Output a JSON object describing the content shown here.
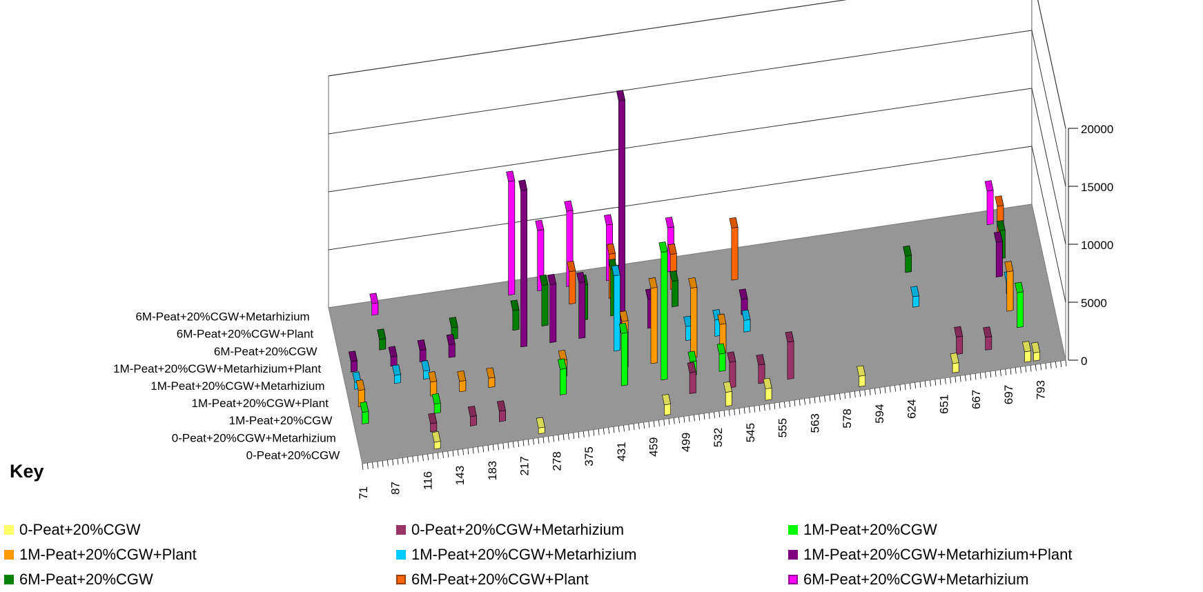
{
  "chart_data": {
    "type": "bar",
    "subtype": "3d-column",
    "title": "",
    "xlabel": "",
    "ylabel": "",
    "zlim": [
      0,
      20000
    ],
    "z_ticks": [
      "0",
      "5000",
      "10000",
      "15000",
      "20000"
    ],
    "x_tick_labels": [
      "71",
      "87",
      "116",
      "143",
      "183",
      "217",
      "278",
      "375",
      "431",
      "459",
      "499",
      "532",
      "545",
      "555",
      "563",
      "578",
      "594",
      "624",
      "651",
      "667",
      "697",
      "793"
    ],
    "series_axis_labels": [
      "0-Peat+20%CGW",
      "0-Peat+20%CGW+Metarhizium",
      "1M-Peat+20%CGW",
      "1M-Peat+20%CGW+Plant",
      "1M-Peat+20%CGW+Metarhizium",
      "1M-Peat+20%CGW+Metarhizium+Plant",
      "6M-Peat+20%CGW",
      "6M-Peat+20%CGW+Plant",
      "6M-Peat+20%CGW+Metarhizium"
    ],
    "legend_title": "Key",
    "legend_placement": "bottom",
    "series": [
      {
        "name": "0-Peat+20%CGW",
        "color": "#FFFF66",
        "x": [
          "116",
          "217",
          "459",
          "532",
          "545",
          "578",
          "651",
          "697",
          "793"
        ],
        "values": [
          600,
          500,
          900,
          1200,
          1000,
          900,
          800,
          900,
          700
        ]
      },
      {
        "name": "0-Peat+20%CGW+Metarhizium",
        "color": "#993366",
        "x": [
          "116",
          "143",
          "183",
          "499",
          "532",
          "545",
          "555",
          "651",
          "667"
        ],
        "values": [
          700,
          800,
          900,
          1800,
          2200,
          1600,
          3200,
          1500,
          1100
        ]
      },
      {
        "name": "1M-Peat+20%CGW",
        "color": "#00FF00",
        "x": [
          "71",
          "116",
          "278",
          "431",
          "459",
          "499",
          "532",
          "697"
        ],
        "values": [
          1000,
          800,
          2200,
          4500,
          11000,
          1200,
          1500,
          3000
        ]
      },
      {
        "name": "1M-Peat+20%CGW+Plant",
        "color": "#FF9900",
        "x": [
          "71",
          "116",
          "143",
          "183",
          "278",
          "431",
          "459",
          "499",
          "532",
          "697"
        ],
        "values": [
          1400,
          1200,
          900,
          800,
          1400,
          4000,
          6500,
          6000,
          2500,
          3400
        ]
      },
      {
        "name": "1M-Peat+20%CGW+Metarhizium",
        "color": "#00CCFF",
        "x": [
          "71",
          "87",
          "116",
          "431",
          "499",
          "532",
          "545",
          "624",
          "697"
        ],
        "values": [
          600,
          700,
          700,
          6500,
          1200,
          1400,
          1000,
          900,
          1000
        ]
      },
      {
        "name": "1M-Peat+20%CGW+Metarhizium+Plant",
        "color": "#800080",
        "x": [
          "71",
          "87",
          "116",
          "143",
          "217",
          "278",
          "375",
          "431",
          "459",
          "545",
          "697"
        ],
        "values": [
          900,
          800,
          1000,
          1100,
          13500,
          5000,
          4800,
          20000,
          2500,
          1300,
          3000
        ]
      },
      {
        "name": "6M-Peat+20%CGW",
        "color": "#008000",
        "x": [
          "87",
          "143",
          "217",
          "278",
          "375",
          "431",
          "499",
          "624",
          "697"
        ],
        "values": [
          900,
          1000,
          1700,
          3500,
          3000,
          4000,
          2200,
          1400,
          2400
        ]
      },
      {
        "name": "6M-Peat+20%CGW+Plant",
        "color": "#FF6600",
        "x": [
          "375",
          "431",
          "499",
          "545",
          "697"
        ],
        "values": [
          2800,
          3800,
          3000,
          4500,
          3000
        ]
      },
      {
        "name": "6M-Peat+20%CGW+Metarhizium",
        "color": "#FF00FF",
        "x": [
          "87",
          "217",
          "278",
          "375",
          "431",
          "499",
          "697"
        ],
        "values": [
          1000,
          9800,
          5200,
          6500,
          4800,
          3800,
          2900
        ]
      }
    ]
  }
}
